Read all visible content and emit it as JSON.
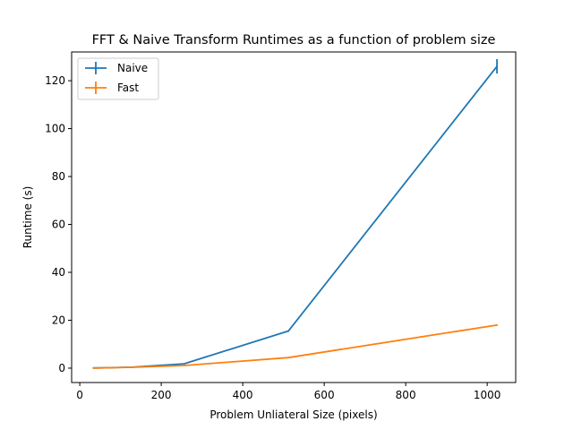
{
  "chart_data": {
    "type": "line",
    "title": "FFT & Naive Transform Runtimes as a function of problem size",
    "xlabel": "Problem Unliateral Size (pixels)",
    "ylabel": "Runtime (s)",
    "xlim": [
      -20,
      1070
    ],
    "ylim": [
      -6,
      132
    ],
    "xticks": [
      0,
      200,
      400,
      600,
      800,
      1000
    ],
    "yticks": [
      0,
      20,
      40,
      60,
      80,
      100,
      120
    ],
    "grid": false,
    "legend_position": "upper-left",
    "series": [
      {
        "name": "Naive",
        "color": "#1f77b4",
        "x": [
          32,
          64,
          128,
          256,
          512,
          1024
        ],
        "y": [
          0.05,
          0.15,
          0.4,
          1.8,
          15.5,
          126.0
        ],
        "yerr": [
          0.01,
          0.02,
          0.05,
          0.1,
          0.3,
          3.0
        ]
      },
      {
        "name": "Fast",
        "color": "#ff7f0e",
        "x": [
          32,
          64,
          128,
          256,
          512,
          1024
        ],
        "y": [
          0.05,
          0.15,
          0.35,
          1.1,
          4.4,
          18.0
        ],
        "yerr": [
          0.01,
          0.02,
          0.03,
          0.05,
          0.1,
          0.3
        ]
      }
    ]
  }
}
